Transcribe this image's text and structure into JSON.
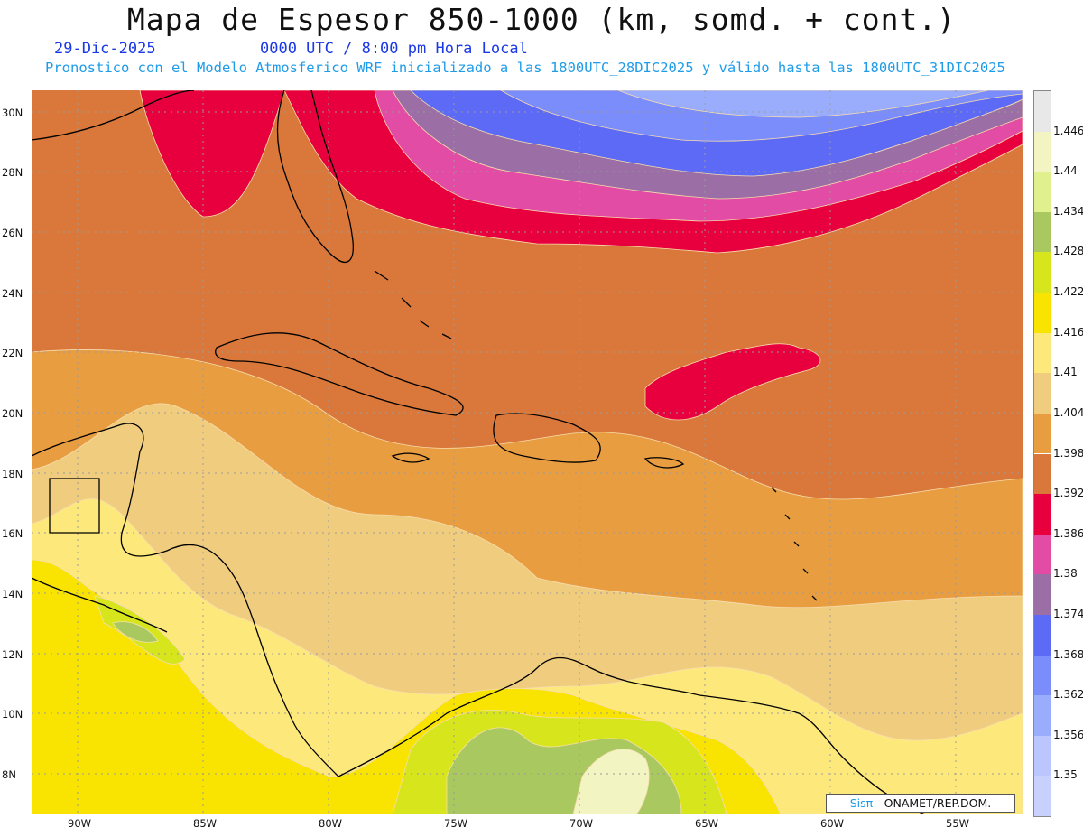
{
  "header": {
    "title": "Mapa de Espesor 850-1000 (km, somd. + cont.)",
    "date": "29-Dic-2025",
    "time": "0000 UTC / 8:00 pm Hora Local",
    "forecast": "Pronostico con el Modelo Atmosferico WRF inicializado a las 1800UTC_28DIC2025 y válido hasta las  1800UTC_31DIC2025"
  },
  "axes": {
    "lat_labels": [
      "30N",
      "28N",
      "26N",
      "24N",
      "22N",
      "20N",
      "18N",
      "16N",
      "14N",
      "12N",
      "10N",
      "8N"
    ],
    "lon_labels": [
      "90W",
      "85W",
      "80W",
      "75W",
      "70W",
      "65W",
      "60W",
      "55W"
    ]
  },
  "colorbar": {
    "labels": [
      "1.446",
      "1.44",
      "1.434",
      "1.428",
      "1.422",
      "1.416",
      "1.41",
      "1.404",
      "1.398",
      "1.392",
      "1.386",
      "1.38",
      "1.374",
      "1.368",
      "1.362",
      "1.356",
      "1.35"
    ],
    "colors": [
      "#e8e8e8",
      "#f2f5c2",
      "#e0f08e",
      "#a9c85f",
      "#d7e61c",
      "#f8e400",
      "#fde97b",
      "#f0cd7e",
      "#e99d41",
      "#d9783a",
      "#e8003e",
      "#e24ca5",
      "#9b6fa5",
      "#5c6af5",
      "#7b8dfb",
      "#9aadfd",
      "#bac6fd"
    ]
  },
  "credit": {
    "brand": "Sisπ",
    "text": " - ONAMET/REP.DOM."
  },
  "map_colors": {
    "ocean_orange": "#d9783a",
    "light_orange": "#e99d41",
    "tan": "#f0cd7e",
    "pale_yellow": "#fde97b",
    "yellow": "#f8e400",
    "lime": "#d7e61c",
    "green": "#a9c85f",
    "pale_green": "#f2f5c2",
    "red": "#e8003e",
    "pink": "#e24ca5",
    "purple": "#9b6fa5",
    "blue": "#5c6af5",
    "light_blue": "#7b8dfb",
    "pale_blue": "#9aadfd"
  }
}
